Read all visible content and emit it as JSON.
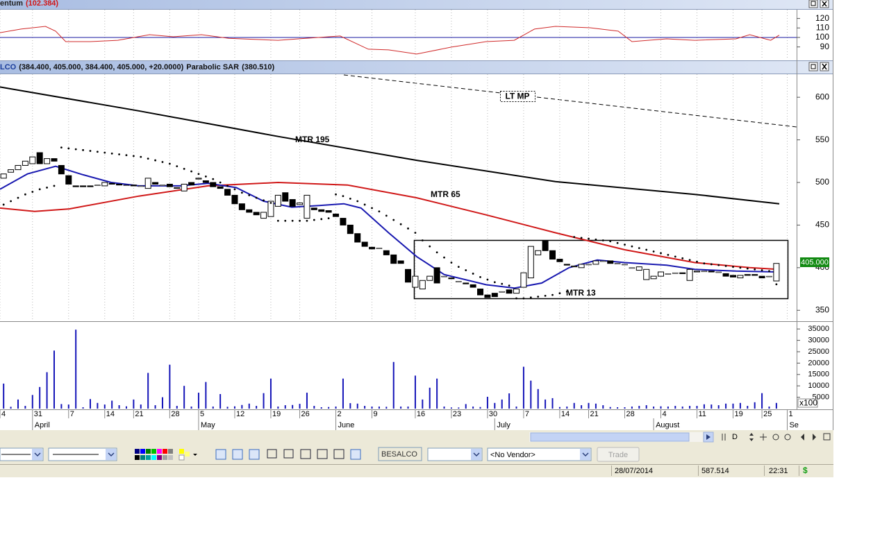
{
  "chart_data": [
    {
      "type": "line",
      "title": "entum",
      "subtitle": "(102.384)",
      "ylim": [
        76.6,
        129.2
      ],
      "yticks": [
        90,
        100,
        110,
        120
      ],
      "hline": 100,
      "hline_color": "#1a1aa0",
      "series": [
        {
          "color": "#d02828",
          "x": [
            -0.5,
            2.4,
            5.8,
            7.2,
            8.6,
            12,
            15.8,
            20.2,
            23.5,
            27.4,
            31.2,
            38,
            41.8,
            46.6,
            50.5,
            53.3,
            57.2,
            62,
            66.8,
            70.7,
            73.5,
            76.4,
            81.2,
            85.1,
            87,
            91.8,
            95.7,
            101.4,
            103.3,
            106.2,
            107.4
          ],
          "values": [
            105,
            108.8,
            111.7,
            106.6,
            95.6,
            95.6,
            97,
            102.9,
            100.7,
            102.9,
            99,
            97,
            99,
            101.5,
            87.6,
            86.9,
            82.5,
            89.8,
            95.6,
            97,
            108.8,
            111.7,
            110.2,
            106.6,
            95.6,
            98.5,
            97,
            98.5,
            102.9,
            97,
            102.384
          ]
        }
      ]
    },
    {
      "type": "candlestick",
      "title": "LCO",
      "subtitle": "(384.400, 405.000, 384.400, 405.000, +20.0000)",
      "indicator": "Parabolic SAR",
      "indicator_value": "(380.510)",
      "last_label": "405.000",
      "annotation": "LT MP",
      "ylim": [
        338,
        627
      ],
      "yticks": [
        350,
        400,
        450,
        500,
        550,
        600
      ],
      "open": [
        505,
        512,
        515,
        520,
        522,
        535,
        522,
        528,
        520,
        508,
        496,
        496,
        496,
        497,
        496,
        499,
        498,
        497,
        497,
        496,
        493,
        500,
        497,
        498,
        493,
        490,
        500,
        504,
        502,
        500,
        495,
        492,
        485,
        475,
        468,
        465,
        458,
        460,
        472,
        488,
        480,
        474,
        458,
        470,
        468,
        467,
        463,
        458,
        450,
        440,
        430,
        424,
        423,
        420,
        415,
        408,
        398,
        377,
        375,
        385,
        400,
        390,
        388,
        384,
        382,
        380,
        375,
        368,
        370,
        372,
        374,
        370,
        377,
        388,
        415,
        432,
        420,
        410,
        404,
        401,
        400,
        404,
        404,
        408,
        408,
        405,
        404,
        400,
        397,
        386,
        387,
        390,
        393,
        394,
        394,
        385,
        395,
        396,
        396,
        395,
        393,
        391,
        388,
        392,
        392,
        390,
        390,
        384.4
      ],
      "close": [
        510,
        515,
        520,
        525,
        530,
        522,
        528,
        525,
        510,
        498,
        495,
        495,
        495,
        497,
        500,
        498,
        497,
        497,
        496,
        496,
        505,
        498,
        497,
        495,
        494,
        498,
        497,
        505,
        500,
        495,
        493,
        485,
        475,
        468,
        465,
        462,
        465,
        478,
        485,
        478,
        472,
        476,
        485,
        468,
        466,
        465,
        460,
        450,
        440,
        430,
        425,
        422,
        423,
        415,
        405,
        405,
        383,
        390,
        385,
        390,
        382,
        390,
        387,
        384,
        381,
        377,
        368,
        365,
        366,
        372,
        370,
        375,
        394,
        425,
        420,
        420,
        410,
        407,
        403,
        402,
        404,
        404,
        408,
        408,
        405,
        405,
        404,
        400,
        401,
        398,
        390,
        395,
        393,
        394,
        393,
        398,
        396,
        396,
        395,
        395,
        390,
        389,
        391,
        391,
        391,
        388,
        390,
        405
      ],
      "sar": [
        474,
        478,
        482,
        486,
        489,
        492,
        494,
        496,
        541,
        540,
        539,
        538,
        537,
        536,
        535,
        534,
        533,
        532,
        531,
        530,
        528,
        526,
        524,
        522,
        519,
        516,
        513,
        510,
        507,
        504,
        500,
        496,
        492,
        488,
        485,
        482,
        479,
        476,
        455,
        455,
        455,
        455,
        455,
        456,
        457,
        458,
        486,
        484,
        481,
        478,
        474,
        470,
        466,
        461,
        456,
        451,
        446,
        441,
        432,
        425,
        418,
        412,
        406,
        401,
        397,
        393,
        389,
        386,
        383,
        381,
        379,
        364,
        364,
        365,
        366,
        367,
        368,
        370,
        372,
        436,
        435,
        434,
        433,
        432,
        431,
        429,
        427,
        425,
        423,
        421,
        419,
        417,
        415,
        413,
        411,
        409,
        407,
        405,
        404,
        403,
        402,
        401,
        400,
        399,
        398,
        397,
        396,
        380.51
      ],
      "lines": [
        {
          "label": "MTR 195",
          "color": "#000000",
          "x": [
            -0.5,
            18.7,
            38,
            57.2,
            76.4,
            95.7,
            107.4
          ],
          "values": [
            612,
            584,
            554,
            526,
            501,
            486,
            475
          ]
        },
        {
          "label": "MTR 65",
          "color": "#d01818",
          "x": [
            -0.5,
            4.3,
            9.1,
            18.7,
            28.3,
            38,
            47.6,
            57.2,
            66.8,
            76.4,
            86,
            95.7,
            103.3,
            107.2
          ],
          "values": [
            470,
            466,
            469,
            484,
            496,
            500,
            497,
            482,
            462,
            441,
            421,
            406,
            400,
            398
          ]
        },
        {
          "label": "MTR 13",
          "color": "#1818b0",
          "x": [
            -0.5,
            3.3,
            7.2,
            11,
            14.9,
            18.7,
            24.5,
            28.3,
            32.2,
            36,
            39.9,
            43.7,
            47.1,
            49.5,
            53.3,
            57.2,
            61,
            66.8,
            70.7,
            74.5,
            78.3,
            82.2,
            86,
            91.8,
            95.7,
            101.4,
            107.2
          ],
          "values": [
            492,
            510,
            519,
            509,
            500,
            496,
            496,
            499,
            494,
            478,
            471,
            473,
            475,
            470,
            441,
            413,
            392,
            380,
            376,
            382,
            400,
            409,
            406,
            403,
            398,
            396,
            395
          ]
        }
      ]
    },
    {
      "type": "bar",
      "color": "#1414b8",
      "unit_label": "x100",
      "ylim": [
        0,
        37800
      ],
      "yticks": [
        5000,
        10000,
        15000,
        20000,
        25000,
        30000,
        35000
      ],
      "values": [
        11000,
        800,
        4000,
        1200,
        6000,
        9500,
        16000,
        25500,
        2000,
        1800,
        34700,
        600,
        4200,
        2500,
        1800,
        3500,
        1500,
        1000,
        4000,
        1800,
        15700,
        1500,
        5000,
        19300,
        1200,
        10000,
        900,
        7000,
        11700,
        900,
        6400,
        800,
        1000,
        1600,
        2200,
        1200,
        6800,
        13200,
        900,
        1500,
        1600,
        2100,
        7000,
        1200,
        600,
        700,
        900,
        13200,
        2400,
        2200,
        1200,
        900,
        900,
        800,
        20500,
        900,
        900,
        14500,
        4000,
        9200,
        13200,
        900,
        500,
        500,
        2000,
        900,
        700,
        5200,
        2500,
        4000,
        6700,
        900,
        18400,
        12300,
        8600,
        4000,
        4600,
        700,
        900,
        2500,
        1500,
        2500,
        2200,
        1500,
        700,
        600,
        600,
        900,
        1200,
        1500,
        900,
        1000,
        900,
        1200,
        900,
        1200,
        1200,
        1900,
        1800,
        1500,
        2200,
        2200,
        2500,
        1200,
        2800,
        6800,
        900,
        2500
      ],
      "xlim": [
        -0.5,
        109.8
      ],
      "xticks": [
        {
          "value": -0.5,
          "label": "4"
        },
        {
          "value": 4,
          "label": "31"
        },
        {
          "value": 9,
          "label": "7"
        },
        {
          "value": 14,
          "label": "14"
        },
        {
          "value": 18,
          "label": "21"
        },
        {
          "value": 23,
          "label": "28"
        },
        {
          "value": 27,
          "label": "5"
        },
        {
          "value": 32,
          "label": "12"
        },
        {
          "value": 37,
          "label": "19"
        },
        {
          "value": 41,
          "label": "26"
        },
        {
          "value": 46,
          "label": "2"
        },
        {
          "value": 51,
          "label": "9"
        },
        {
          "value": 57,
          "label": "16"
        },
        {
          "value": 62,
          "label": "23"
        },
        {
          "value": 67,
          "label": "30"
        },
        {
          "value": 72,
          "label": "7"
        },
        {
          "value": 77,
          "label": "14"
        },
        {
          "value": 81,
          "label": "21"
        },
        {
          "value": 86,
          "label": "28"
        },
        {
          "value": 91,
          "label": "4"
        },
        {
          "value": 96,
          "label": "11"
        },
        {
          "value": 101,
          "label": "19"
        },
        {
          "value": 105,
          "label": "25"
        },
        {
          "value": 108.5,
          "label": "1"
        }
      ],
      "month_ticks": [
        {
          "value": 4,
          "label": "April"
        },
        {
          "value": 27,
          "label": "May"
        },
        {
          "value": 46,
          "label": "June"
        },
        {
          "value": 68,
          "label": "July"
        },
        {
          "value": 90,
          "label": "August"
        },
        {
          "value": 108.5,
          "label": "Se"
        }
      ]
    }
  ],
  "ui": {
    "nav_button": "D",
    "symbol": "BESALCO",
    "vendor": "<No Vendor>",
    "trade": "Trade",
    "status": {
      "date": "28/07/2014",
      "value": "587.514",
      "time": "22:31",
      "currency": "$"
    }
  }
}
